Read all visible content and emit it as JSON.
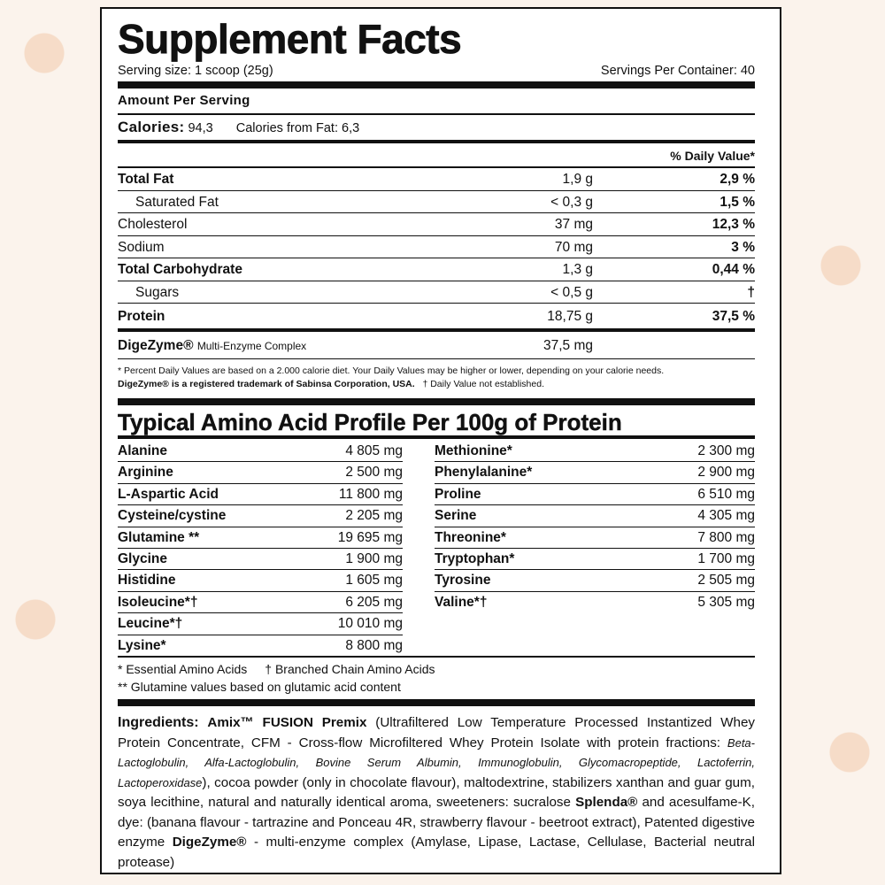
{
  "header": {
    "title": "Supplement Facts",
    "serving_size": "Serving size: 1 scoop (25g)",
    "servings_per_container": "Servings Per Container: 40"
  },
  "nutrition": {
    "amount_per_serving": "Amount Per Serving",
    "calories": {
      "label": "Calories:",
      "value": "94,3",
      "from_fat": "Calories from Fat: 6,3"
    },
    "daily_value_header": "% Daily Value*",
    "rows": [
      [
        "Total Fat",
        "1,9 g",
        "2,9 %"
      ],
      [
        "Saturated Fat",
        "< 0,3 g",
        "1,5 %"
      ],
      [
        "Cholesterol",
        "37 mg",
        "12,3 %"
      ],
      [
        "Sodium",
        "70 mg",
        "3 %"
      ],
      [
        "Total Carbohydrate",
        "1,3 g",
        "0,44 %"
      ],
      [
        "Sugars",
        "< 0,5 g",
        "†"
      ],
      [
        "Protein",
        "18,75 g",
        "37,5 %"
      ]
    ],
    "enzyme": {
      "name": "DigeZyme®",
      "description": "Multi-Enzyme Complex",
      "amount": "37,5 mg"
    },
    "footnotes": [
      "* Percent Daily Values are based on a 2.000 calorie diet. Your Daily Values may be higher or lower, depending on your calorie needs.",
      "DigeZyme® is a registered trademark of Sabinsa Corporation, USA.",
      "† Daily Value not established."
    ]
  },
  "amino_profile": {
    "title": "Typical Amino Acid Profile Per 100g of Protein",
    "left": [
      [
        "Alanine",
        "4 805 mg"
      ],
      [
        "Arginine",
        "2 500 mg"
      ],
      [
        "L-Aspartic Acid",
        "11 800 mg"
      ],
      [
        "Cysteine/cystine",
        "2 205 mg"
      ],
      [
        "Glutamine **",
        "19 695 mg"
      ],
      [
        "Glycine",
        "1 900 mg"
      ],
      [
        "Histidine",
        "1 605 mg"
      ],
      [
        "Isoleucine*†",
        "6 205 mg"
      ],
      [
        "Leucine*†",
        "10 010 mg"
      ],
      [
        "Lysine*",
        "8 800 mg"
      ]
    ],
    "right": [
      [
        "Methionine*",
        "2 300 mg"
      ],
      [
        "Phenylalanine*",
        "2 900 mg"
      ],
      [
        "Proline",
        "6 510 mg"
      ],
      [
        "Serine",
        "4 305 mg"
      ],
      [
        "Threonine*",
        "7 800 mg"
      ],
      [
        "Tryptophan*",
        "1 700 mg"
      ],
      [
        "Tyrosine",
        "2 505 mg"
      ],
      [
        "Valine*†",
        "5 305 mg"
      ]
    ],
    "notes": [
      "* Essential Amino Acids",
      "† Branched Chain Amino Acids",
      "** Glutamine values based on glutamic acid content"
    ]
  },
  "ingredients": {
    "label": "Ingredients:",
    "segments": [
      "Amix™ FUSION Premix",
      " (Ultrafiltered Low Temperature Processed Instantized Whey Protein Concentrate, CFM - Cross-flow Microfiltered Whey Protein Isolate with protein fractions: ",
      "Beta-Lactoglobulin, Alfa-Lactoglobulin, Bovine Serum Albumin, Immunoglobulin, Glycomacropeptide, Lactoferrin, Lactoperoxidase",
      "), cocoa powder (only in chocolate flavour), maltodextrine, stabilizers xanthan and guar gum, soya lecithine, natural and naturally identical aroma, sweeteners: sucralose ",
      "Splenda®",
      " and acesulfame-K, dye: (banana flavour - tartrazine and Ponceau 4R, strawberry flavour - beetroot extract), Patented digestive enzyme ",
      "DigeZyme®",
      " - multi-enzyme complex (Amylase, Lipase, Lactase, Cellulase, Bacterial neutral protease)"
    ]
  }
}
